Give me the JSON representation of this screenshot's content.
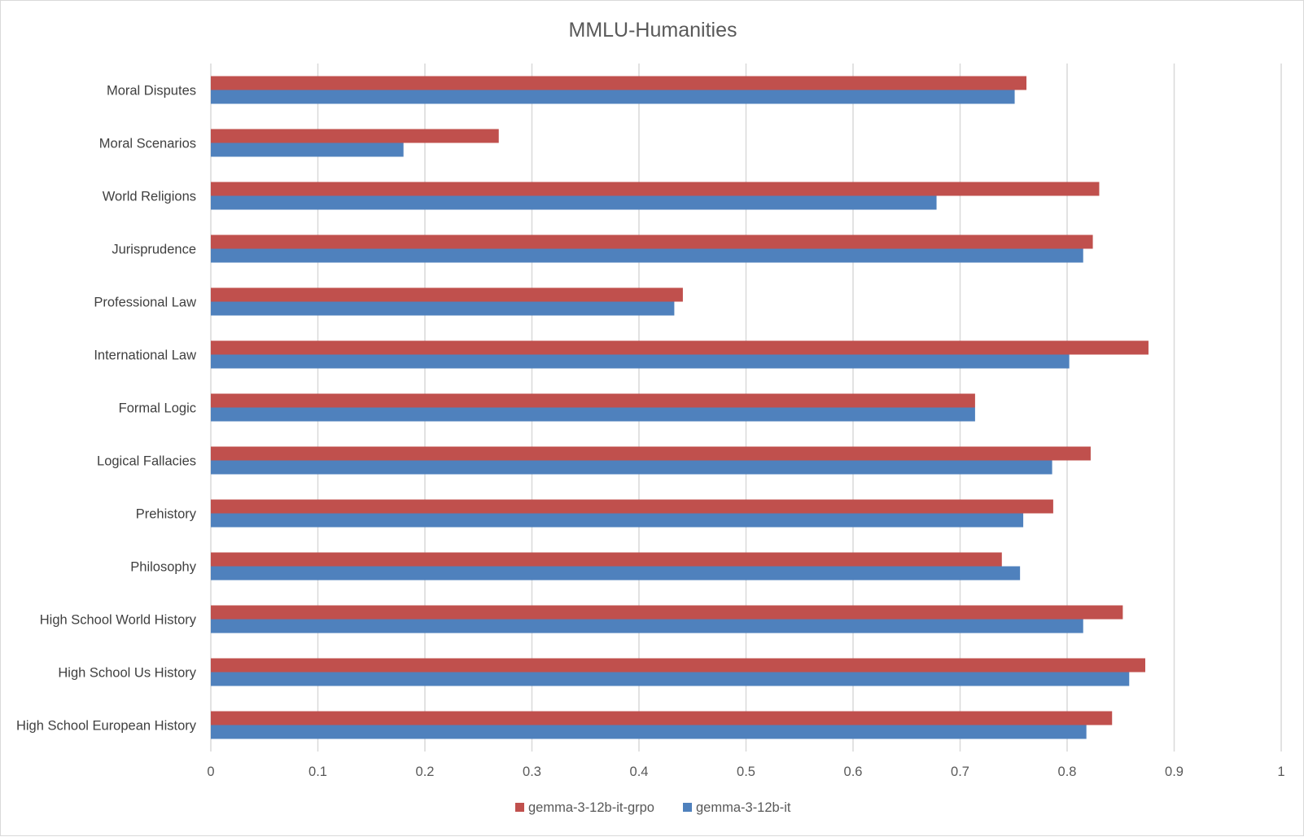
{
  "chart_data": {
    "type": "bar",
    "orientation": "horizontal",
    "title": "MMLU-Humanities",
    "xlabel": "",
    "ylabel": "",
    "xlim": [
      0,
      1
    ],
    "x_ticks": [
      "0",
      "0.1",
      "0.2",
      "0.3",
      "0.4",
      "0.5",
      "0.6",
      "0.7",
      "0.8",
      "0.9",
      "1"
    ],
    "grid": true,
    "legend_position": "bottom",
    "categories": [
      "Moral Disputes",
      "Moral Scenarios",
      "World Religions",
      "Jurisprudence",
      "Professional Law",
      "International Law",
      "Formal Logic",
      "Logical Fallacies",
      "Prehistory",
      "Philosophy",
      "High School World History",
      "High School Us History",
      "High School European History"
    ],
    "series": [
      {
        "name": "gemma-3-12b-it-grpo",
        "color": "#C0504D",
        "values": [
          0.762,
          0.269,
          0.83,
          0.824,
          0.441,
          0.876,
          0.714,
          0.822,
          0.787,
          0.739,
          0.852,
          0.873,
          0.842
        ]
      },
      {
        "name": "gemma-3-12b-it",
        "color": "#4F81BD",
        "values": [
          0.751,
          0.18,
          0.678,
          0.815,
          0.433,
          0.802,
          0.714,
          0.786,
          0.759,
          0.756,
          0.815,
          0.858,
          0.818
        ]
      }
    ]
  }
}
